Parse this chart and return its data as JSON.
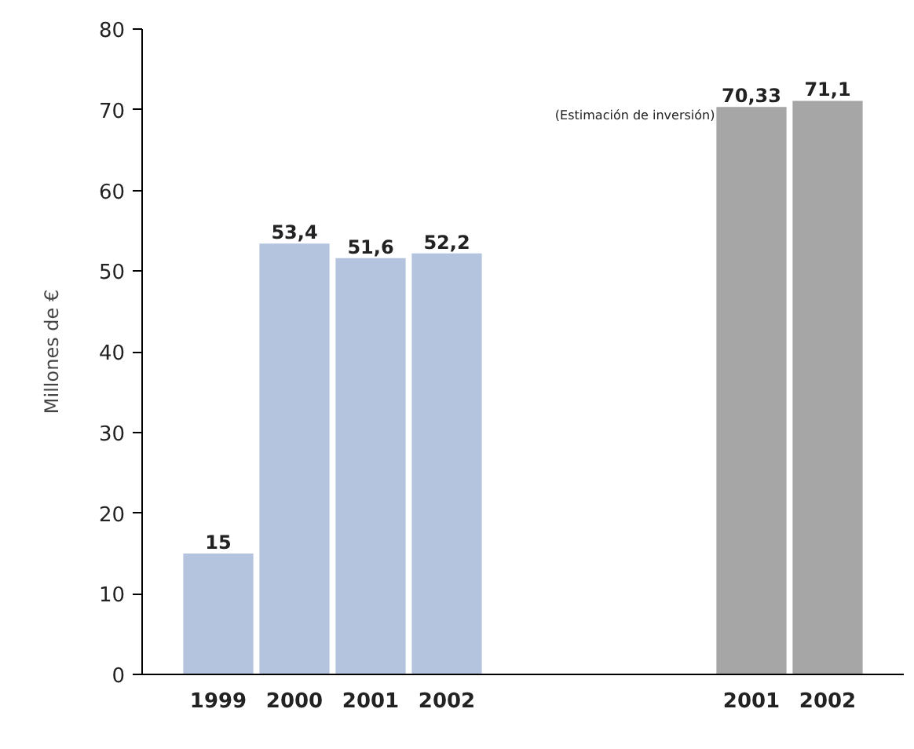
{
  "chart_data": {
    "type": "bar",
    "ylabel": "Millones de €",
    "categories": [
      "1999",
      "2000",
      "2001",
      "2002",
      null,
      null,
      null,
      "2001",
      "2002"
    ],
    "series": [
      {
        "color": "#b4c3de",
        "values": [
          15,
          53.4,
          51.6,
          52.2,
          null,
          null,
          null,
          null,
          null
        ]
      },
      {
        "color": "#a6a6a6",
        "values": [
          null,
          null,
          null,
          null,
          null,
          null,
          null,
          70.33,
          71.1
        ]
      }
    ],
    "value_labels": [
      "15",
      "53,4",
      "51,6",
      "52,2",
      "70,33",
      "71,1"
    ],
    "annotations": [
      "(Estimación de inversión)"
    ],
    "ylim": [
      0,
      80
    ],
    "yticks": [
      0,
      10,
      20,
      30,
      40,
      50,
      60,
      70,
      80
    ],
    "grid": false
  }
}
